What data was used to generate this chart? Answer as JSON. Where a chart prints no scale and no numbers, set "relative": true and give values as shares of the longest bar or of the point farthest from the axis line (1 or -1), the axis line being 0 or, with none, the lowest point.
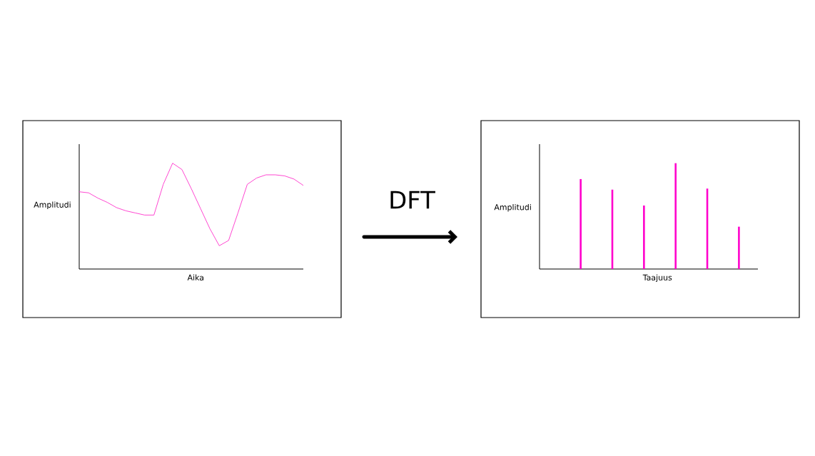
{
  "chart_data": [
    {
      "type": "line",
      "relative": true,
      "xlabel": "Aika",
      "ylabel": "Amplitudi",
      "color": "#ff33cc",
      "categories": [
        null,
        null,
        null,
        null,
        null,
        null,
        null,
        null,
        null,
        null,
        null,
        null,
        null,
        null,
        null,
        null,
        null,
        null,
        null,
        null,
        null,
        null,
        null,
        null,
        null
      ],
      "values": [
        0.73,
        0.72,
        0.67,
        0.63,
        0.58,
        0.55,
        0.53,
        0.51,
        0.51,
        0.8,
        1.0,
        0.94,
        0.76,
        0.57,
        0.38,
        0.22,
        0.27,
        0.53,
        0.8,
        0.86,
        0.89,
        0.89,
        0.88,
        0.85,
        0.79
      ]
    },
    {
      "type": "bar",
      "relative": true,
      "xlabel": "Taajuus",
      "ylabel": "Amplitudi",
      "color": "#ff00cc",
      "categories": [
        null,
        null,
        null,
        null,
        null,
        null
      ],
      "values": [
        0.85,
        0.75,
        0.6,
        1.0,
        0.76,
        0.4
      ]
    },
    {
      "type": "other",
      "annotations": [
        "DFT"
      ]
    }
  ]
}
